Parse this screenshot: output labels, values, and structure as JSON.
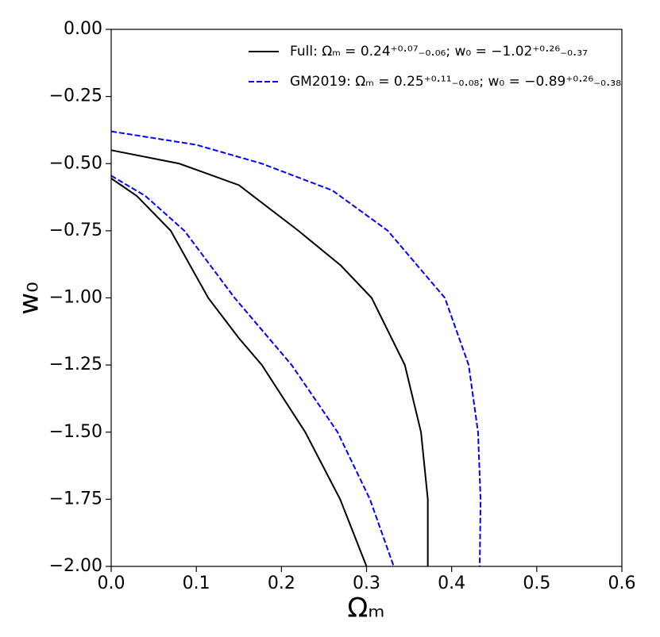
{
  "chart_data": {
    "type": "line",
    "x_label": "Ωₘ",
    "y_label": "w₀",
    "xlim": [
      0,
      0.6
    ],
    "ylim": [
      -2,
      0
    ],
    "xticks": [
      {
        "value": 0,
        "label": "0.0"
      },
      0.1,
      0.2,
      0.3,
      0.4,
      0.5,
      0.6
    ],
    "yticks": [
      {
        "value": 0,
        "label": "0.00"
      },
      {
        "value": -0.25,
        "label": "−0.25"
      },
      {
        "value": -0.5,
        "label": "−0.50"
      },
      {
        "value": -0.75,
        "label": "−0.75"
      },
      {
        "value": -1,
        "label": "−1.00"
      },
      {
        "value": -1.25,
        "label": "−1.25"
      },
      {
        "value": -1.5,
        "label": "−1.50"
      },
      {
        "value": -1.75,
        "label": "−1.75"
      },
      {
        "value": -2,
        "label": "−2.00"
      }
    ],
    "legend_position": "upper right",
    "series": [
      {
        "name": "Full: Ωₘ = 0.24⁺⁰·⁰⁷₋₀.₀₆; w₀ = −1.02⁺⁰·²⁶₋₀.₃₇",
        "color": "#000000",
        "linestyle": "solid",
        "x": [
          0,
          0.03,
          0.07,
          0.114,
          0.15,
          0.177,
          0.228,
          0.269,
          0.3,
          null,
          0,
          0.08,
          0.15,
          0.22,
          0.27,
          0.306,
          0.345,
          0.364,
          0.372,
          0.372
        ],
        "values": [
          -0.555,
          -0.62,
          -0.75,
          -1.0,
          -1.15,
          -1.25,
          -1.5,
          -1.75,
          -2.0,
          null,
          -0.45,
          -0.5,
          -0.58,
          -0.75,
          -0.88,
          -1.0,
          -1.25,
          -1.5,
          -1.75,
          -2.0
        ]
      },
      {
        "name": "GM2019: Ωₘ = 0.25⁺⁰·¹¹₋₀.₀₈; w₀ = −0.89⁺⁰·²⁶₋₀.₃₈",
        "color": "#0000ff",
        "linestyle": "dashed",
        "x": [
          0,
          0.04,
          0.086,
          0.145,
          0.212,
          0.266,
          0.304,
          0.332,
          null,
          0,
          0.1,
          0.177,
          0.26,
          0.325,
          0.392,
          0.42,
          0.431,
          0.434,
          0.433
        ],
        "values": [
          -0.545,
          -0.62,
          -0.75,
          -1.0,
          -1.25,
          -1.5,
          -1.75,
          -2.0,
          null,
          -0.38,
          -0.43,
          -0.5,
          -0.6,
          -0.75,
          -1.0,
          -1.25,
          -1.5,
          -1.75,
          -2.0
        ]
      }
    ]
  }
}
